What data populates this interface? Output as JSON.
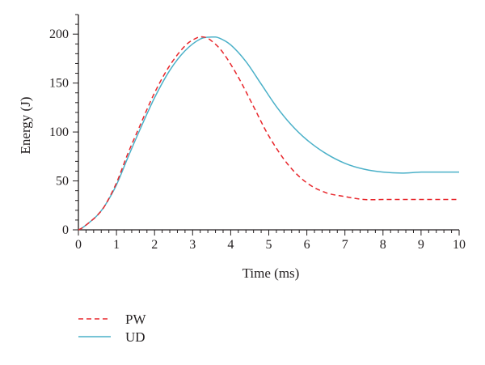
{
  "chart_data": {
    "type": "line",
    "xlabel": "Time (ms)",
    "ylabel": "Energy (J)",
    "xlim": [
      0,
      10
    ],
    "ylim": [
      0,
      220
    ],
    "xticks": [
      0,
      1,
      2,
      3,
      4,
      5,
      6,
      7,
      8,
      9,
      10
    ],
    "yticks": [
      0,
      50,
      100,
      150,
      200
    ],
    "grid": false,
    "legend_position": "bottom-left, below plot",
    "series": [
      {
        "name": "PW",
        "color": "#e8262b",
        "dash": "dashed",
        "x": [
          0,
          0.1,
          0.3,
          0.5,
          0.7,
          1.0,
          1.3,
          1.6,
          2.0,
          2.4,
          2.8,
          3.1,
          3.3,
          3.5,
          3.8,
          4.2,
          4.6,
          5.0,
          5.5,
          6.0,
          6.5,
          7.0,
          7.5,
          8.0,
          8.5,
          9.0,
          9.5,
          10.0
        ],
        "y": [
          0,
          2,
          8,
          15,
          25,
          48,
          78,
          105,
          140,
          168,
          188,
          196,
          197,
          193,
          181,
          156,
          126,
          96,
          67,
          48,
          38,
          34,
          31,
          31,
          31,
          31,
          31,
          31
        ]
      },
      {
        "name": "UD",
        "color": "#4ab0c8",
        "dash": "solid",
        "x": [
          0,
          0.1,
          0.3,
          0.5,
          0.7,
          1.0,
          1.3,
          1.6,
          2.0,
          2.4,
          2.8,
          3.2,
          3.5,
          3.7,
          4.0,
          4.4,
          4.8,
          5.2,
          5.6,
          6.0,
          6.5,
          7.0,
          7.5,
          8.0,
          8.5,
          9.0,
          9.5,
          10.0
        ],
        "y": [
          0,
          2,
          8,
          15,
          25,
          46,
          74,
          101,
          135,
          163,
          183,
          195,
          197,
          196,
          189,
          172,
          149,
          126,
          107,
          92,
          78,
          68,
          62,
          59,
          58,
          59,
          59,
          59
        ]
      }
    ]
  }
}
